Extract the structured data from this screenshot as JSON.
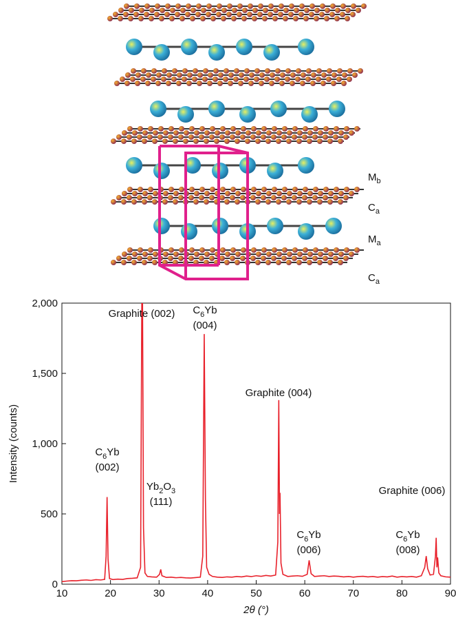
{
  "chart_data": {
    "type": "line",
    "color": "#e8202a",
    "layer_labels": [
      {
        "text": "M",
        "sub": "b"
      },
      {
        "text": "C",
        "sub": "a"
      },
      {
        "text": "M",
        "sub": "a"
      },
      {
        "text": "C",
        "sub": "a"
      }
    ],
    "x_label": "2θ (°)",
    "y_label": "Intensity (counts)",
    "xlim": [
      10,
      90
    ],
    "xticks": [
      10,
      20,
      30,
      40,
      50,
      60,
      70,
      80,
      90
    ],
    "ylim": [
      0,
      2000
    ],
    "yticks": [
      0,
      500,
      {
        "value": 1000,
        "label": "1,000"
      },
      {
        "value": 1500,
        "label": "1,500"
      },
      {
        "value": 2000,
        "label": "2,000"
      }
    ],
    "annotations": [
      [
        [
          "Graphite (002)"
        ]
      ],
      [
        [
          "C",
          {
            "sub": "6"
          },
          "Yb"
        ],
        [
          "(004)"
        ]
      ],
      [
        [
          "Graphite (004)"
        ]
      ],
      [
        [
          "C",
          {
            "sub": "6"
          },
          "Yb"
        ],
        [
          "(002)"
        ]
      ],
      [
        [
          "Yb",
          {
            "sub": "2"
          },
          "O",
          {
            "sub": "3"
          }
        ],
        [
          "(111)"
        ]
      ],
      [
        [
          "C",
          {
            "sub": "6"
          },
          "Yb"
        ],
        [
          "(006)"
        ]
      ],
      [
        [
          "Graphite (006)"
        ]
      ],
      [
        [
          "C",
          {
            "sub": "6"
          },
          "Yb"
        ],
        [
          "(008)"
        ]
      ]
    ],
    "x": [
      10,
      11,
      12,
      13,
      14,
      15,
      16,
      17,
      18,
      18.8,
      19.1,
      19.3,
      19.5,
      19.8,
      20.5,
      21.5,
      22.5,
      23.5,
      24.5,
      25.5,
      26.2,
      26.45,
      26.6,
      26.8,
      27.1,
      27.6,
      28.5,
      29.5,
      30.1,
      30.35,
      30.6,
      31.5,
      32.5,
      33.5,
      34.5,
      35.5,
      36.5,
      37.5,
      38.5,
      39.0,
      39.3,
      39.55,
      39.8,
      40.3,
      41,
      42,
      43,
      44,
      45,
      46,
      47,
      48,
      49,
      50,
      51,
      52,
      53,
      54,
      54.45,
      54.65,
      54.8,
      54.9,
      55.1,
      55.5,
      56.5,
      57.5,
      58.5,
      59.5,
      60.5,
      60.9,
      61.3,
      62,
      63,
      64,
      65,
      66,
      67,
      68,
      69,
      70,
      71,
      72,
      73,
      74,
      75,
      76,
      77,
      78,
      79,
      80,
      81,
      82,
      83,
      84,
      84.7,
      85.0,
      85.3,
      85.8,
      86.5,
      86.9,
      87.05,
      87.2,
      87.35,
      87.6,
      88,
      89,
      90
    ],
    "values": [
      18,
      22,
      25,
      24,
      28,
      30,
      27,
      32,
      30,
      34,
      200,
      620,
      180,
      40,
      33,
      36,
      34,
      40,
      42,
      45,
      120,
      2000,
      2000,
      400,
      80,
      55,
      52,
      50,
      70,
      105,
      60,
      48,
      50,
      46,
      48,
      45,
      44,
      47,
      50,
      200,
      1780,
      600,
      120,
      70,
      55,
      50,
      48,
      52,
      50,
      55,
      52,
      58,
      54,
      60,
      56,
      62,
      58,
      65,
      300,
      1310,
      500,
      650,
      150,
      70,
      55,
      58,
      60,
      56,
      70,
      170,
      75,
      55,
      58,
      60,
      55,
      58,
      56,
      52,
      55,
      50,
      54,
      56,
      52,
      55,
      50,
      54,
      52,
      58,
      50,
      54,
      52,
      55,
      50,
      60,
      120,
      200,
      110,
      65,
      70,
      200,
      330,
      120,
      190,
      80,
      60,
      52,
      50
    ]
  }
}
